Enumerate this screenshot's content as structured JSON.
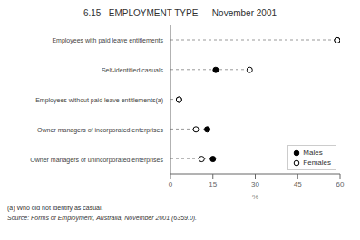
{
  "chart_data": {
    "type": "dot",
    "title": "6.15   EMPLOYMENT TYPE — November 2001",
    "orientation": "horizontal",
    "categories": [
      "Owner managers of unincorporated enterprises",
      "Owner managers of incorporated enterprises",
      "Employees without paid leave entitlements(a)",
      "Self-identified casuals",
      "Employees with paid leave entitlements"
    ],
    "series": [
      {
        "name": "Males",
        "color": "#000000",
        "marker": "filled_circle",
        "values": [
          15,
          13,
          3,
          16,
          59
        ]
      },
      {
        "name": "Females",
        "color": "#000000",
        "marker": "open_circle",
        "values": [
          11,
          9,
          3,
          28,
          59
        ]
      }
    ],
    "line_ends": [
      15,
      13,
      3,
      28,
      59
    ],
    "color": "#999999",
    "line_style": "dashed",
    "xlabel": "%",
    "xlim": [
      0,
      60
    ],
    "xticks": [
      0,
      15,
      30,
      45,
      60
    ],
    "grid": false,
    "legend": "lower right",
    "annotations": [
      "(a) Who did not identify as casual.",
      "Source: Forms of Employment, Australia, November 2001 (6359.0)."
    ]
  }
}
